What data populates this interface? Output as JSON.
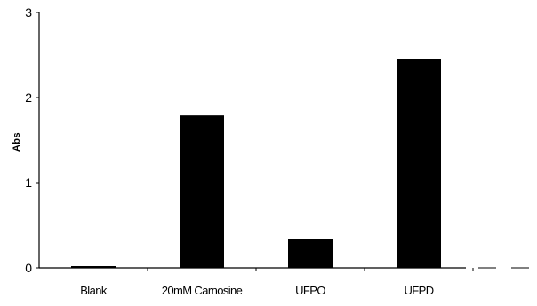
{
  "chart_data": {
    "type": "bar",
    "title": "",
    "xlabel": "",
    "ylabel": "Abs",
    "categories": [
      "Blank",
      "20mM Carnosine",
      "UFPO",
      "UFPD"
    ],
    "values": [
      0.02,
      1.79,
      0.34,
      2.45
    ],
    "ylim": [
      0,
      3
    ],
    "yticks": [
      "0",
      "1",
      "2",
      "3"
    ],
    "grid": false,
    "legend": "none",
    "bar_color": "#000000"
  }
}
